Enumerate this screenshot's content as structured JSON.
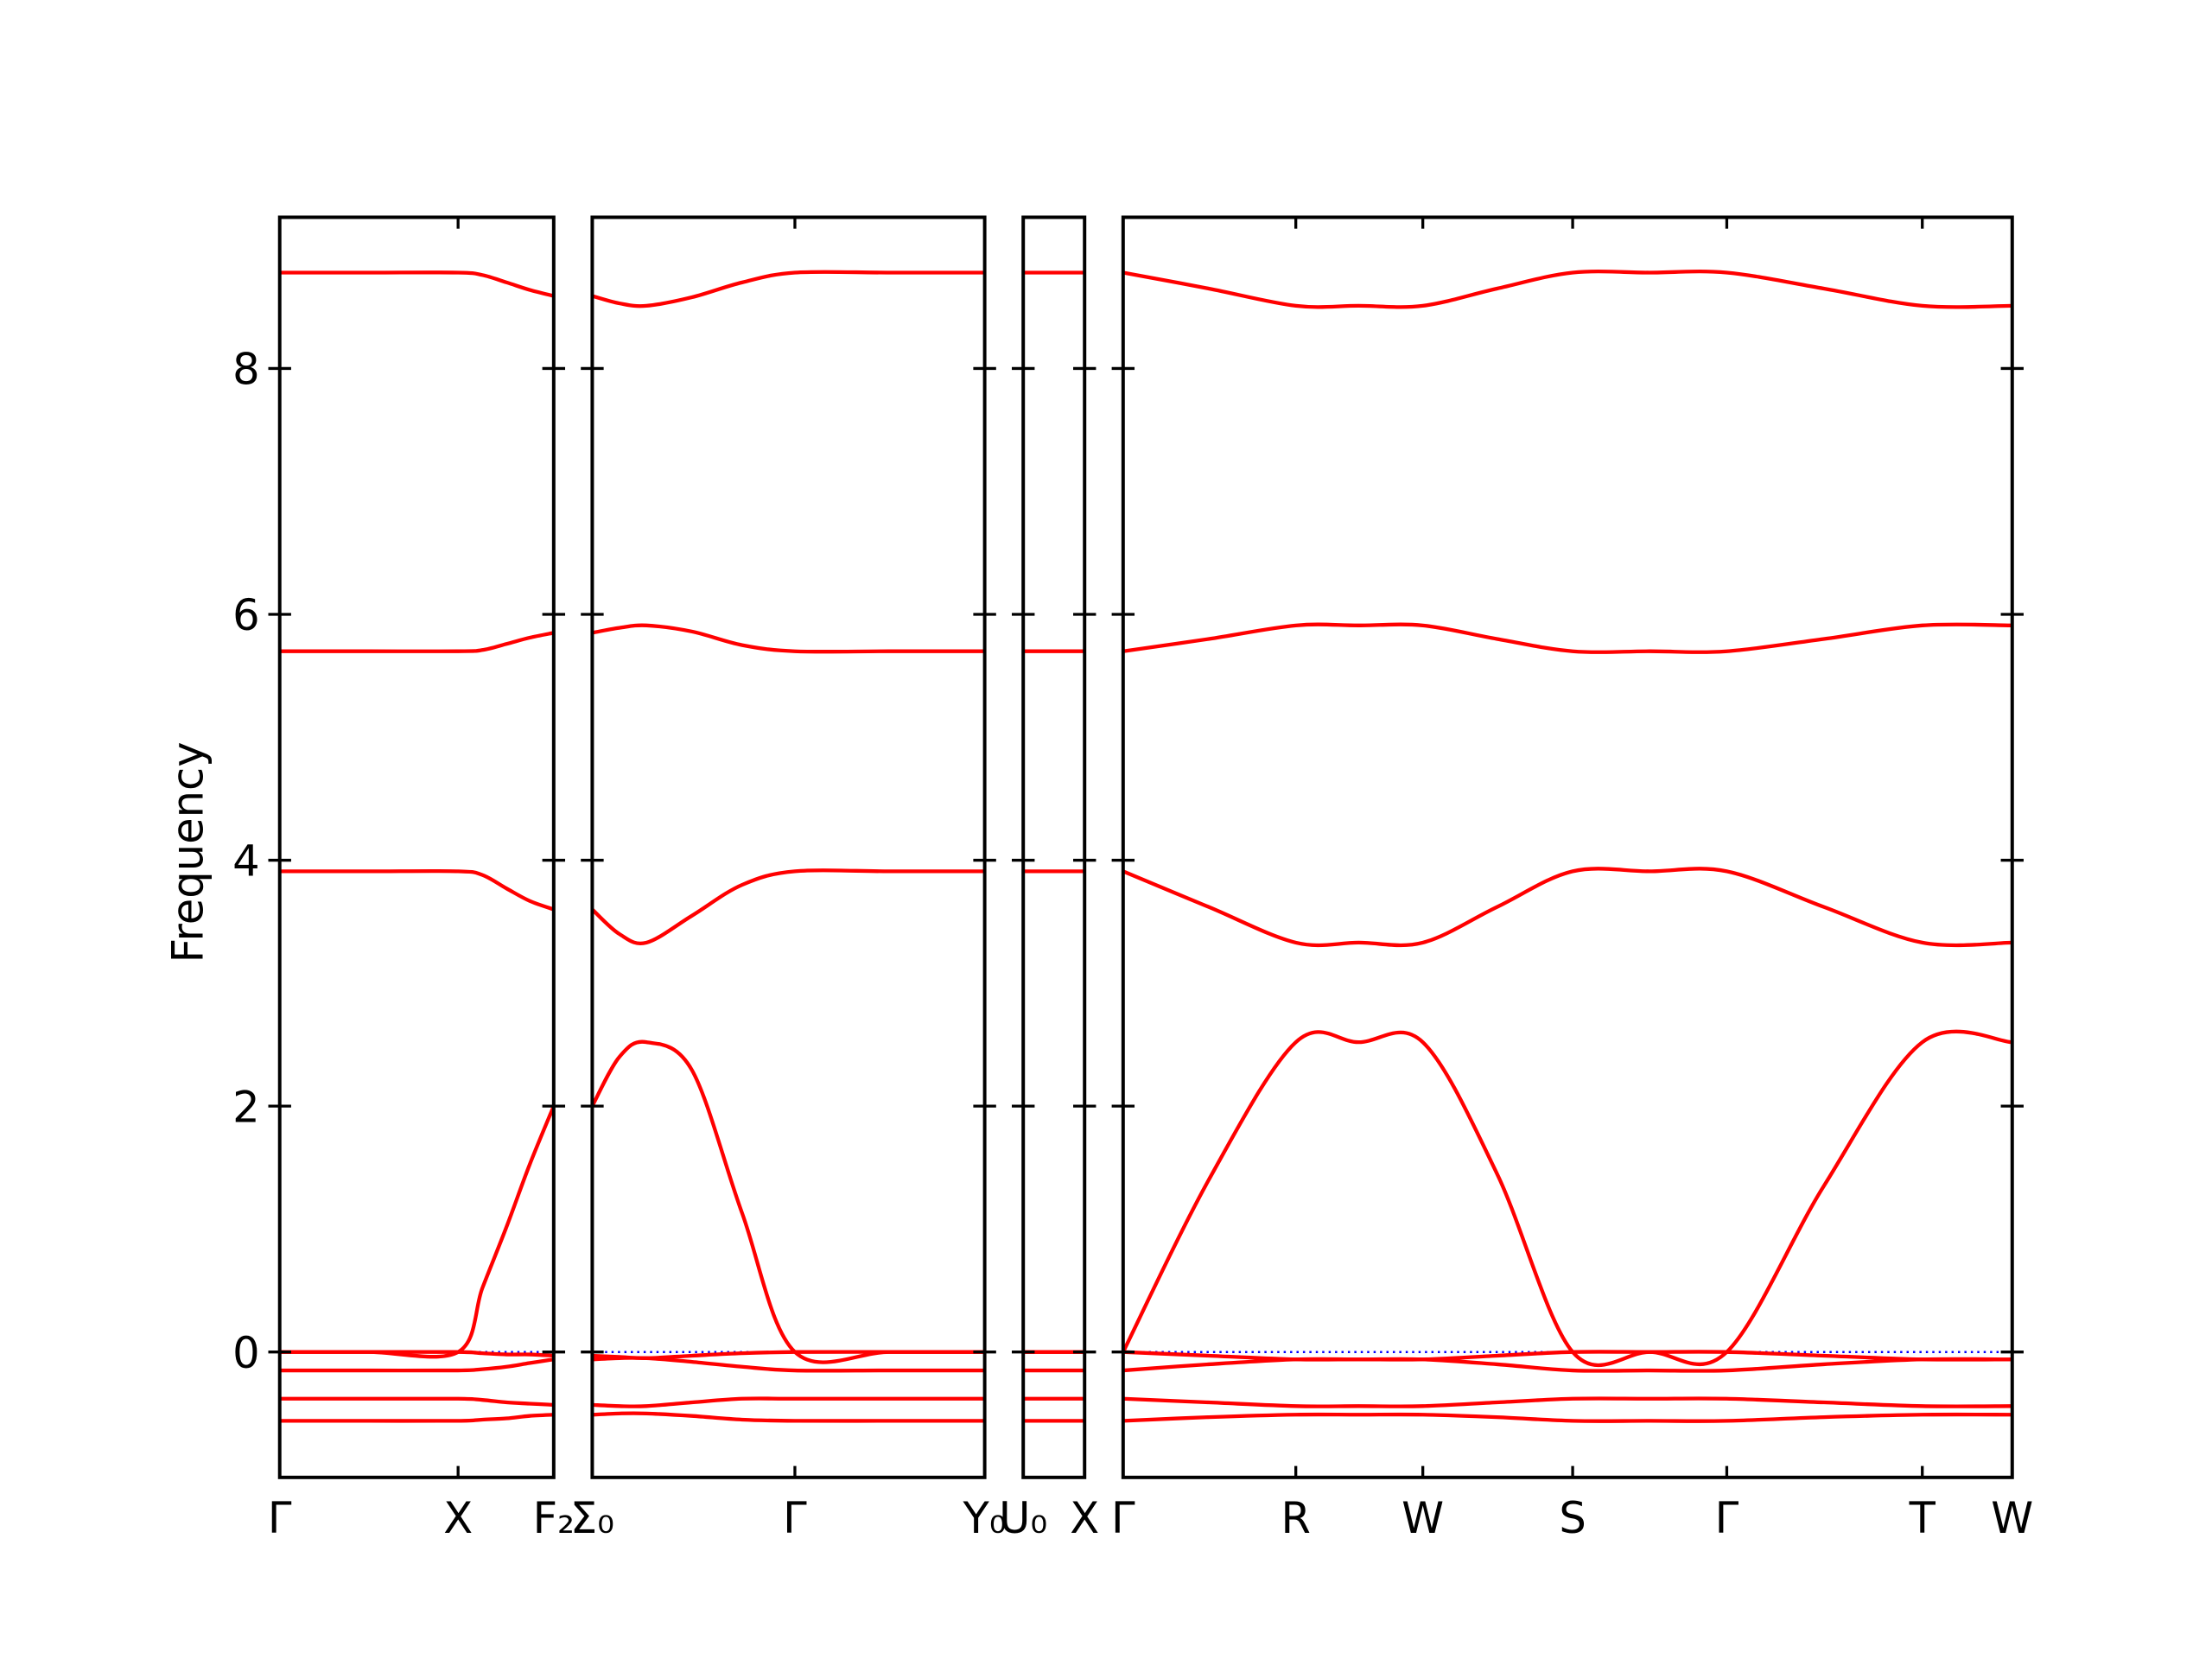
{
  "chart_data": {
    "type": "line",
    "ylabel": "Frequency",
    "ylim": [
      -1.02,
      9.23
    ],
    "yticks": [
      0,
      2,
      4,
      6,
      8
    ],
    "color": "#ff0000",
    "zero_line_color": "#0000ff",
    "panels": [
      {
        "xlim": [
          0,
          1.92
        ],
        "xticks": [
          {
            "value": 0,
            "label": "Γ"
          },
          {
            "value": 1.25,
            "label": "X"
          },
          {
            "value": 1.92,
            "label": "F₂"
          }
        ],
        "x": [
          0,
          0.62,
          1.25,
          1.42,
          1.59,
          1.75,
          1.92
        ],
        "series": [
          {
            "values": [
              8.78,
              8.78,
              8.78,
              8.76,
              8.7,
              8.64,
              8.59
            ]
          },
          {
            "values": [
              5.7,
              5.7,
              5.7,
              5.71,
              5.76,
              5.81,
              5.85
            ]
          },
          {
            "values": [
              3.91,
              3.91,
              3.91,
              3.88,
              3.77,
              3.67,
              3.6
            ]
          },
          {
            "values": [
              0,
              0,
              0,
              0.52,
              1.02,
              1.52,
              2.0
            ]
          },
          {
            "values": [
              0,
              0,
              0,
              -0.01,
              -0.02,
              -0.02,
              -0.03
            ]
          },
          {
            "values": [
              -0.15,
              -0.15,
              -0.15,
              -0.14,
              -0.12,
              -0.09,
              -0.06
            ]
          },
          {
            "values": [
              -0.38,
              -0.38,
              -0.38,
              -0.39,
              -0.41,
              -0.42,
              -0.43
            ]
          },
          {
            "values": [
              -0.56,
              -0.56,
              -0.56,
              -0.55,
              -0.54,
              -0.52,
              -0.51
            ]
          }
        ]
      },
      {
        "xlim": [
          0,
          2.75
        ],
        "xticks": [
          {
            "value": 0,
            "label": "Σ₀"
          },
          {
            "value": 1.42,
            "label": "Γ"
          },
          {
            "value": 2.75,
            "label": "Y₀"
          }
        ],
        "x": [
          0,
          0.19,
          0.38,
          0.7,
          1.05,
          1.42,
          2.08,
          2.75
        ],
        "series": [
          {
            "values": [
              8.59,
              8.53,
              8.51,
              8.58,
              8.7,
              8.78,
              8.78,
              8.78
            ]
          },
          {
            "values": [
              5.85,
              5.89,
              5.91,
              5.86,
              5.75,
              5.7,
              5.7,
              5.7
            ]
          },
          {
            "values": [
              3.6,
              3.4,
              3.33,
              3.55,
              3.8,
              3.91,
              3.91,
              3.91
            ]
          },
          {
            "values": [
              2.0,
              2.4,
              2.52,
              2.29,
              1.13,
              0,
              0,
              0
            ]
          },
          {
            "values": [
              -0.03,
              -0.04,
              -0.05,
              -0.03,
              -0.01,
              0,
              0,
              0
            ]
          },
          {
            "values": [
              -0.06,
              -0.05,
              -0.05,
              -0.08,
              -0.12,
              -0.15,
              -0.15,
              -0.15
            ]
          },
          {
            "values": [
              -0.43,
              -0.44,
              -0.44,
              -0.41,
              -0.38,
              -0.38,
              -0.38,
              -0.38
            ]
          },
          {
            "values": [
              -0.51,
              -0.5,
              -0.5,
              -0.52,
              -0.55,
              -0.56,
              -0.56,
              -0.56
            ]
          }
        ]
      },
      {
        "xlim": [
          0,
          0.43
        ],
        "xticks": [
          {
            "value": 0,
            "label": "U₀"
          },
          {
            "value": 0.43,
            "label": "X"
          }
        ],
        "x": [
          0,
          0.43
        ],
        "series": [
          {
            "values": [
              8.78,
              8.78
            ]
          },
          {
            "values": [
              5.7,
              5.7
            ]
          },
          {
            "values": [
              3.91,
              3.91
            ]
          },
          {
            "values": [
              0,
              0
            ]
          },
          {
            "values": [
              0,
              0
            ]
          },
          {
            "values": [
              -0.15,
              -0.15
            ]
          },
          {
            "values": [
              -0.38,
              -0.38
            ]
          },
          {
            "values": [
              -0.56,
              -0.56
            ]
          }
        ]
      },
      {
        "xlim": [
          0,
          6.23
        ],
        "xticks": [
          {
            "value": 0,
            "label": "Γ"
          },
          {
            "value": 1.21,
            "label": "R"
          },
          {
            "value": 2.1,
            "label": "W"
          },
          {
            "value": 3.15,
            "label": "S"
          },
          {
            "value": 4.23,
            "label": "Γ"
          },
          {
            "value": 5.6,
            "label": "T"
          },
          {
            "value": 6.23,
            "label": "W"
          }
        ],
        "x": [
          0,
          0.6,
          1.21,
          1.65,
          2.1,
          2.62,
          3.15,
          3.69,
          4.23,
          4.91,
          5.6,
          6.23
        ],
        "series": [
          {
            "values": [
              8.78,
              8.65,
              8.51,
              8.51,
              8.51,
              8.65,
              8.78,
              8.78,
              8.78,
              8.65,
              8.51,
              8.51
            ]
          },
          {
            "values": [
              5.7,
              5.8,
              5.91,
              5.91,
              5.91,
              5.8,
              5.7,
              5.7,
              5.7,
              5.8,
              5.91,
              5.91
            ]
          },
          {
            "values": [
              3.91,
              3.62,
              3.33,
              3.33,
              3.33,
              3.62,
              3.91,
              3.91,
              3.91,
              3.62,
              3.33,
              3.33
            ]
          },
          {
            "values": [
              0,
              1.4,
              2.52,
              2.52,
              2.52,
              1.45,
              0,
              0,
              0,
              1.35,
              2.52,
              2.52
            ]
          },
          {
            "values": [
              0,
              -0.03,
              -0.06,
              -0.06,
              -0.06,
              -0.03,
              0,
              0,
              0,
              -0.03,
              -0.06,
              -0.06
            ]
          },
          {
            "values": [
              -0.15,
              -0.1,
              -0.06,
              -0.06,
              -0.06,
              -0.1,
              -0.15,
              -0.15,
              -0.15,
              -0.1,
              -0.06,
              -0.06
            ]
          },
          {
            "values": [
              -0.38,
              -0.41,
              -0.44,
              -0.44,
              -0.44,
              -0.41,
              -0.38,
              -0.38,
              -0.38,
              -0.41,
              -0.44,
              -0.44
            ]
          },
          {
            "values": [
              -0.56,
              -0.53,
              -0.51,
              -0.51,
              -0.51,
              -0.53,
              -0.56,
              -0.56,
              -0.56,
              -0.53,
              -0.51,
              -0.51
            ]
          }
        ]
      }
    ]
  }
}
